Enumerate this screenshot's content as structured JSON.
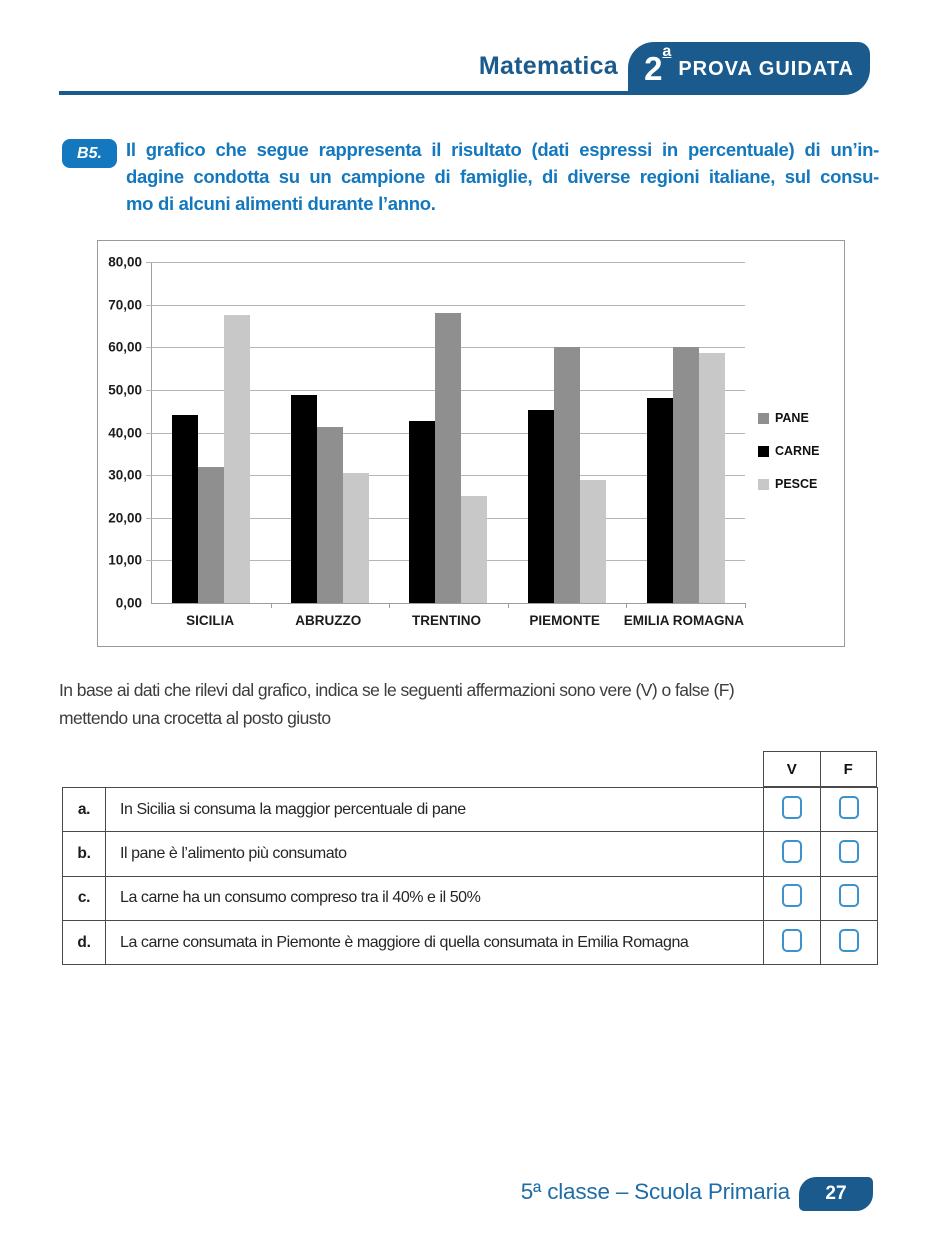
{
  "header": {
    "subject": "Matematica",
    "badge": {
      "number": "2",
      "ordinal": "a",
      "label": "PROVA GUIDATA"
    }
  },
  "question": {
    "number": "B5.",
    "lines": [
      "Il grafico che segue rappresenta il risultato (dati espressi in percentuale) di un’in-",
      "dagine condotta su un campione di famiglie, di diverse regioni italiane, sul consu-",
      "mo di alcuni alimenti durante l’anno."
    ]
  },
  "chart_data": {
    "type": "bar",
    "title": "",
    "xlabel": "",
    "ylabel": "",
    "categories": [
      "SICILIA",
      "ABRUZZO",
      "TRENTINO",
      "PIEMONTE",
      "EMILIA ROMAGNA"
    ],
    "series": [
      {
        "name": "CARNE",
        "color": "#000000",
        "values": [
          44.0,
          48.7,
          42.7,
          45.2,
          48.0
        ]
      },
      {
        "name": "PANE",
        "color": "#8f8f8f",
        "values": [
          32.0,
          41.2,
          68.0,
          60.0,
          60.0
        ]
      },
      {
        "name": "PESCE",
        "color": "#c8c8c8",
        "values": [
          67.5,
          30.6,
          25.0,
          28.8,
          58.6
        ]
      }
    ],
    "legend_order": [
      "PANE",
      "CARNE",
      "PESCE"
    ],
    "y_ticks": [
      "80,00",
      "70,00",
      "60,00",
      "50,00",
      "40,00",
      "30,00",
      "20,00",
      "10,00",
      "0,00"
    ],
    "ymax": 80,
    "ylim": [
      0,
      80
    ],
    "grid": true,
    "legend_position": "right"
  },
  "instruction": {
    "lines": [
      "In base ai dati che rilevi dal grafico, indica se le seguenti affermazioni sono vere (V) o false (F)",
      "mettendo una crocetta al posto giusto"
    ]
  },
  "table": {
    "header_v": "V",
    "header_f": "F",
    "rows": [
      {
        "letter": "a.",
        "text": "In Sicilia si consuma la maggior percentuale di pane"
      },
      {
        "letter": "b.",
        "text": "Il pane è l’alimento più consumato"
      },
      {
        "letter": "c.",
        "text": "La carne ha un consumo compreso tra il 40% e il 50%"
      },
      {
        "letter": "d.",
        "text": "La carne consumata in Piemonte è maggiore di quella consumata in Emilia Romagna"
      }
    ]
  },
  "footer": {
    "label": "5ª classe – Scuola Primaria",
    "page": "27"
  },
  "colors": {
    "dark_blue": "#1a5a8c",
    "bright_blue": "#1478be",
    "footer_blue": "#1e6da6",
    "checkbox_blue": "#3c92cc",
    "bar_carne": "#000000",
    "bar_pane": "#8f8f8f",
    "bar_pesce": "#c8c8c8"
  }
}
